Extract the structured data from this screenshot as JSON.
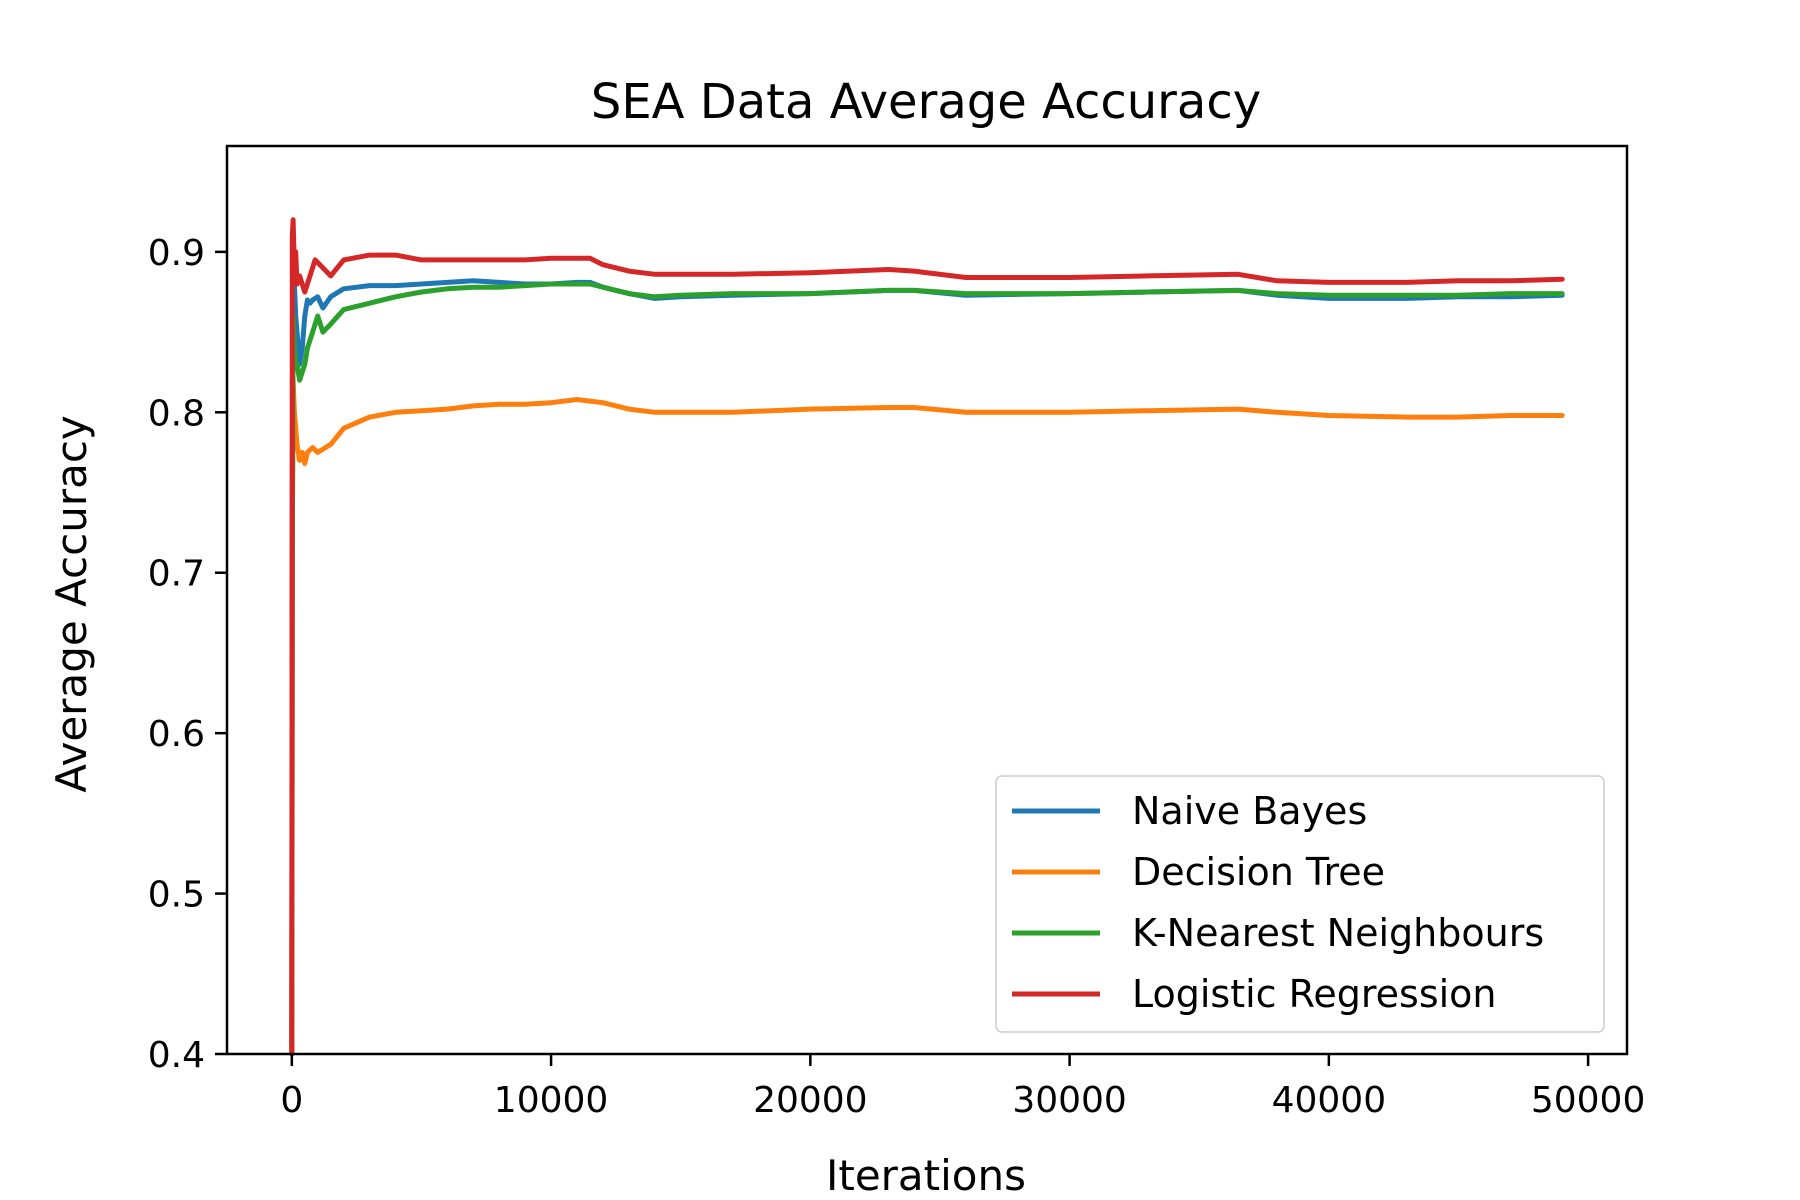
{
  "chart_data": {
    "type": "line",
    "title": "SEA Data Average Accuracy",
    "xlabel": "Iterations",
    "ylabel": "Average Accuracy",
    "xlim": [
      -2500,
      51500
    ],
    "ylim": [
      0.4,
      0.966
    ],
    "xticks": [
      0,
      10000,
      20000,
      30000,
      40000,
      50000
    ],
    "xtick_labels": [
      "0",
      "10000",
      "20000",
      "30000",
      "40000",
      "50000"
    ],
    "yticks": [
      0.4,
      0.5,
      0.6,
      0.7,
      0.8,
      0.9
    ],
    "ytick_labels": [
      "0.4",
      "0.5",
      "0.6",
      "0.7",
      "0.8",
      "0.9"
    ],
    "grid": false,
    "legend": {
      "position": "lower-right"
    },
    "series": [
      {
        "name": "Naive Bayes",
        "color": "#1f77b4",
        "x": [
          0,
          20,
          50,
          100,
          150,
          200,
          300,
          400,
          500,
          600,
          700,
          800,
          1000,
          1200,
          1500,
          2000,
          3000,
          4000,
          5000,
          6000,
          7000,
          8000,
          9000,
          10000,
          11000,
          11500,
          12000,
          13000,
          14000,
          15000,
          17000,
          20000,
          23000,
          24000,
          26000,
          30000,
          33000,
          36500,
          38000,
          40000,
          43000,
          45000,
          47000,
          49000
        ],
        "y": [
          0.4,
          0.75,
          0.9,
          0.88,
          0.86,
          0.85,
          0.83,
          0.84,
          0.86,
          0.87,
          0.868,
          0.87,
          0.872,
          0.865,
          0.872,
          0.877,
          0.879,
          0.879,
          0.88,
          0.881,
          0.882,
          0.881,
          0.88,
          0.88,
          0.881,
          0.881,
          0.878,
          0.874,
          0.871,
          0.872,
          0.873,
          0.874,
          0.876,
          0.876,
          0.873,
          0.874,
          0.875,
          0.876,
          0.873,
          0.871,
          0.871,
          0.872,
          0.872,
          0.873
        ]
      },
      {
        "name": "Decision Tree",
        "color": "#ff7f0e",
        "x": [
          0,
          20,
          50,
          100,
          150,
          200,
          300,
          400,
          500,
          600,
          800,
          1000,
          1500,
          2000,
          3000,
          4000,
          5000,
          6000,
          7000,
          8000,
          9000,
          10000,
          11000,
          11500,
          12000,
          13000,
          14000,
          15000,
          17000,
          20000,
          23000,
          24000,
          26000,
          30000,
          33000,
          36500,
          38000,
          40000,
          43000,
          45000,
          47000,
          49000
        ],
        "y": [
          0.4,
          0.72,
          0.82,
          0.8,
          0.79,
          0.78,
          0.77,
          0.775,
          0.768,
          0.775,
          0.778,
          0.775,
          0.78,
          0.79,
          0.797,
          0.8,
          0.801,
          0.802,
          0.804,
          0.805,
          0.805,
          0.806,
          0.808,
          0.807,
          0.806,
          0.802,
          0.8,
          0.8,
          0.8,
          0.802,
          0.803,
          0.803,
          0.8,
          0.8,
          0.801,
          0.802,
          0.8,
          0.798,
          0.797,
          0.797,
          0.798,
          0.798
        ]
      },
      {
        "name": "K-Nearest Neighbours",
        "color": "#2ca02c",
        "x": [
          0,
          20,
          50,
          100,
          150,
          200,
          300,
          400,
          500,
          600,
          700,
          800,
          1000,
          1200,
          1500,
          2000,
          3000,
          4000,
          5000,
          6000,
          7000,
          8000,
          9000,
          10000,
          11000,
          11500,
          12000,
          13000,
          14000,
          15000,
          17000,
          20000,
          23000,
          24000,
          26000,
          30000,
          33000,
          36500,
          38000,
          40000,
          43000,
          45000,
          47000,
          49000
        ],
        "y": [
          0.4,
          0.7,
          0.86,
          0.84,
          0.83,
          0.83,
          0.82,
          0.825,
          0.83,
          0.84,
          0.845,
          0.85,
          0.86,
          0.85,
          0.855,
          0.864,
          0.868,
          0.872,
          0.875,
          0.877,
          0.878,
          0.878,
          0.879,
          0.88,
          0.88,
          0.88,
          0.878,
          0.874,
          0.872,
          0.873,
          0.874,
          0.874,
          0.876,
          0.876,
          0.874,
          0.874,
          0.875,
          0.876,
          0.874,
          0.873,
          0.873,
          0.873,
          0.874,
          0.874
        ]
      },
      {
        "name": "Logistic Regression",
        "color": "#d62728",
        "x": [
          0,
          20,
          50,
          100,
          150,
          200,
          300,
          400,
          500,
          700,
          900,
          1200,
          1500,
          2000,
          3000,
          4000,
          5000,
          6000,
          7000,
          8000,
          9000,
          10000,
          11000,
          11500,
          12000,
          13000,
          14000,
          15000,
          17000,
          20000,
          23000,
          24000,
          26000,
          30000,
          33000,
          36500,
          38000,
          40000,
          43000,
          45000,
          47000,
          49000
        ],
        "y": [
          0.4,
          0.91,
          0.92,
          0.89,
          0.9,
          0.88,
          0.885,
          0.88,
          0.875,
          0.885,
          0.895,
          0.89,
          0.885,
          0.895,
          0.898,
          0.898,
          0.895,
          0.895,
          0.895,
          0.895,
          0.895,
          0.896,
          0.896,
          0.896,
          0.892,
          0.888,
          0.886,
          0.886,
          0.886,
          0.887,
          0.889,
          0.888,
          0.884,
          0.884,
          0.885,
          0.886,
          0.882,
          0.881,
          0.881,
          0.882,
          0.882,
          0.883
        ]
      }
    ]
  }
}
